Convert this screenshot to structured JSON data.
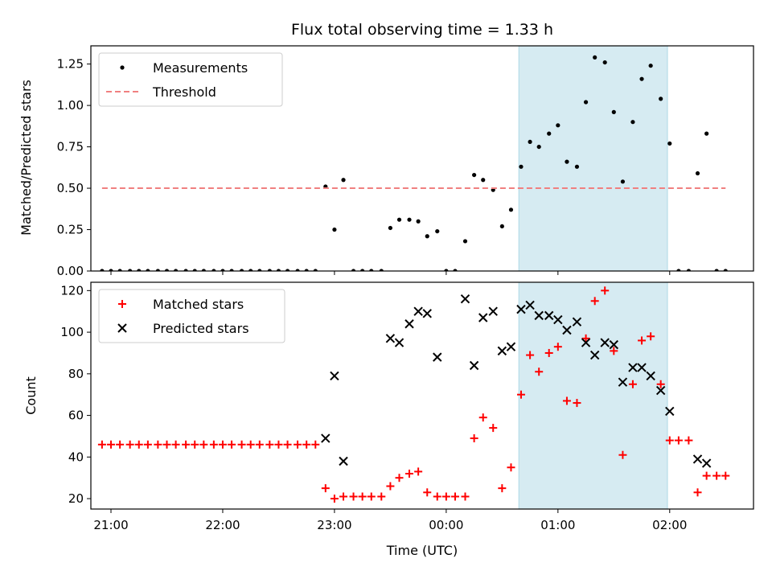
{
  "chart_data": [
    {
      "type": "scatter",
      "title": "Flux total observing time = 1.33 h",
      "xlabel": "",
      "ylabel": "Matched/Predicted stars",
      "xlim": [
        20.82,
        26.75
      ],
      "ylim": [
        0,
        1.36
      ],
      "yticks": [
        0,
        0.25,
        0.5,
        0.75,
        1.0,
        1.25
      ],
      "ytick_labels": [
        "0.00",
        "0.25",
        "0.50",
        "0.75",
        "1.00",
        "1.25"
      ],
      "xticks": [
        21,
        22,
        23,
        24,
        25,
        26
      ],
      "grid": false,
      "legend_position": "top-left",
      "shaded_region": {
        "x_start": 24.65,
        "x_end": 25.98,
        "color": "#add8e6"
      },
      "series": [
        {
          "name": "Measurements",
          "marker": "dot",
          "color": "#000000",
          "points": [
            [
              20.92,
              0
            ],
            [
              21.0,
              0
            ],
            [
              21.08,
              0
            ],
            [
              21.17,
              0
            ],
            [
              21.25,
              0
            ],
            [
              21.33,
              0
            ],
            [
              21.42,
              0
            ],
            [
              21.5,
              0
            ],
            [
              21.58,
              0
            ],
            [
              21.67,
              0
            ],
            [
              21.75,
              0
            ],
            [
              21.83,
              0
            ],
            [
              21.92,
              0
            ],
            [
              22.0,
              0
            ],
            [
              22.08,
              0
            ],
            [
              22.17,
              0
            ],
            [
              22.25,
              0
            ],
            [
              22.33,
              0
            ],
            [
              22.42,
              0
            ],
            [
              22.5,
              0
            ],
            [
              22.58,
              0
            ],
            [
              22.67,
              0
            ],
            [
              22.75,
              0
            ],
            [
              22.83,
              0
            ],
            [
              22.92,
              0.51
            ],
            [
              23.0,
              0.25
            ],
            [
              23.08,
              0.55
            ],
            [
              23.17,
              0
            ],
            [
              23.25,
              0
            ],
            [
              23.33,
              0
            ],
            [
              23.42,
              0
            ],
            [
              23.5,
              0.26
            ],
            [
              23.58,
              0.31
            ],
            [
              23.67,
              0.31
            ],
            [
              23.75,
              0.3
            ],
            [
              23.83,
              0.21
            ],
            [
              23.92,
              0.24
            ],
            [
              24.0,
              0
            ],
            [
              24.08,
              0
            ],
            [
              24.17,
              0.18
            ],
            [
              24.25,
              0.58
            ],
            [
              24.33,
              0.55
            ],
            [
              24.42,
              0.49
            ],
            [
              24.5,
              0.27
            ],
            [
              24.58,
              0.37
            ],
            [
              24.67,
              0.63
            ],
            [
              24.75,
              0.78
            ],
            [
              24.83,
              0.75
            ],
            [
              24.92,
              0.83
            ],
            [
              25.0,
              0.88
            ],
            [
              25.08,
              0.66
            ],
            [
              25.17,
              0.63
            ],
            [
              25.25,
              1.02
            ],
            [
              25.33,
              1.29
            ],
            [
              25.42,
              1.26
            ],
            [
              25.5,
              0.96
            ],
            [
              25.58,
              0.54
            ],
            [
              25.67,
              0.9
            ],
            [
              25.75,
              1.16
            ],
            [
              25.83,
              1.24
            ],
            [
              25.92,
              1.04
            ],
            [
              26.0,
              0.77
            ],
            [
              26.08,
              0
            ],
            [
              26.17,
              0
            ],
            [
              26.25,
              0.59
            ],
            [
              26.33,
              0.83
            ],
            [
              26.42,
              0
            ],
            [
              26.5,
              0
            ]
          ]
        },
        {
          "name": "Threshold",
          "marker": "dashed-line",
          "color": "#f08080",
          "points": [
            [
              20.92,
              0.5
            ],
            [
              26.5,
              0.5
            ]
          ]
        }
      ]
    },
    {
      "type": "scatter",
      "title": "",
      "xlabel": "Time (UTC)",
      "ylabel": "Count",
      "xlim": [
        20.82,
        26.75
      ],
      "ylim": [
        15,
        124
      ],
      "yticks": [
        20,
        40,
        60,
        80,
        100,
        120
      ],
      "ytick_labels": [
        "20",
        "40",
        "60",
        "80",
        "100",
        "120"
      ],
      "xticks": [
        21,
        22,
        23,
        24,
        25,
        26
      ],
      "xtick_labels": [
        "21:00",
        "22:00",
        "23:00",
        "00:00",
        "01:00",
        "02:00"
      ],
      "grid": false,
      "legend_position": "top-left",
      "shaded_region": {
        "x_start": 24.65,
        "x_end": 25.98,
        "color": "#add8e6"
      },
      "series": [
        {
          "name": "Matched stars",
          "marker": "plus",
          "color": "#ff0000",
          "points": [
            [
              20.92,
              46
            ],
            [
              21.0,
              46
            ],
            [
              21.08,
              46
            ],
            [
              21.17,
              46
            ],
            [
              21.25,
              46
            ],
            [
              21.33,
              46
            ],
            [
              21.42,
              46
            ],
            [
              21.5,
              46
            ],
            [
              21.58,
              46
            ],
            [
              21.67,
              46
            ],
            [
              21.75,
              46
            ],
            [
              21.83,
              46
            ],
            [
              21.92,
              46
            ],
            [
              22.0,
              46
            ],
            [
              22.08,
              46
            ],
            [
              22.17,
              46
            ],
            [
              22.25,
              46
            ],
            [
              22.33,
              46
            ],
            [
              22.42,
              46
            ],
            [
              22.5,
              46
            ],
            [
              22.58,
              46
            ],
            [
              22.67,
              46
            ],
            [
              22.75,
              46
            ],
            [
              22.83,
              46
            ],
            [
              22.92,
              25
            ],
            [
              23.0,
              20
            ],
            [
              23.08,
              21
            ],
            [
              23.17,
              21
            ],
            [
              23.25,
              21
            ],
            [
              23.33,
              21
            ],
            [
              23.42,
              21
            ],
            [
              23.5,
              26
            ],
            [
              23.58,
              30
            ],
            [
              23.67,
              32
            ],
            [
              23.75,
              33
            ],
            [
              23.83,
              23
            ],
            [
              23.92,
              21
            ],
            [
              24.0,
              21
            ],
            [
              24.08,
              21
            ],
            [
              24.17,
              21
            ],
            [
              24.25,
              49
            ],
            [
              24.33,
              59
            ],
            [
              24.42,
              54
            ],
            [
              24.5,
              25
            ],
            [
              24.58,
              35
            ],
            [
              24.67,
              70
            ],
            [
              24.75,
              89
            ],
            [
              24.83,
              81
            ],
            [
              24.92,
              90
            ],
            [
              25.0,
              93
            ],
            [
              25.08,
              67
            ],
            [
              25.17,
              66
            ],
            [
              25.25,
              97
            ],
            [
              25.33,
              115
            ],
            [
              25.42,
              120
            ],
            [
              25.5,
              91
            ],
            [
              25.58,
              41
            ],
            [
              25.67,
              75
            ],
            [
              25.75,
              96
            ],
            [
              25.83,
              98
            ],
            [
              25.92,
              75
            ],
            [
              26.0,
              48
            ],
            [
              26.08,
              48
            ],
            [
              26.17,
              48
            ],
            [
              26.25,
              23
            ],
            [
              26.33,
              31
            ],
            [
              26.42,
              31
            ],
            [
              26.5,
              31
            ]
          ]
        },
        {
          "name": "Predicted stars",
          "marker": "x",
          "color": "#000000",
          "points": [
            [
              22.92,
              49
            ],
            [
              23.0,
              79
            ],
            [
              23.08,
              38
            ],
            [
              23.5,
              97
            ],
            [
              23.58,
              95
            ],
            [
              23.67,
              104
            ],
            [
              23.75,
              110
            ],
            [
              23.83,
              109
            ],
            [
              23.92,
              88
            ],
            [
              24.17,
              116
            ],
            [
              24.25,
              84
            ],
            [
              24.33,
              107
            ],
            [
              24.42,
              110
            ],
            [
              24.5,
              91
            ],
            [
              24.58,
              93
            ],
            [
              24.67,
              111
            ],
            [
              24.75,
              113
            ],
            [
              24.83,
              108
            ],
            [
              24.92,
              108
            ],
            [
              25.0,
              106
            ],
            [
              25.08,
              101
            ],
            [
              25.17,
              105
            ],
            [
              25.25,
              95
            ],
            [
              25.33,
              89
            ],
            [
              25.42,
              95
            ],
            [
              25.5,
              94
            ],
            [
              25.58,
              76
            ],
            [
              25.67,
              83
            ],
            [
              25.75,
              83
            ],
            [
              25.83,
              79
            ],
            [
              25.92,
              72
            ],
            [
              26.0,
              62
            ],
            [
              26.25,
              39
            ],
            [
              26.33,
              37
            ]
          ]
        }
      ]
    }
  ]
}
